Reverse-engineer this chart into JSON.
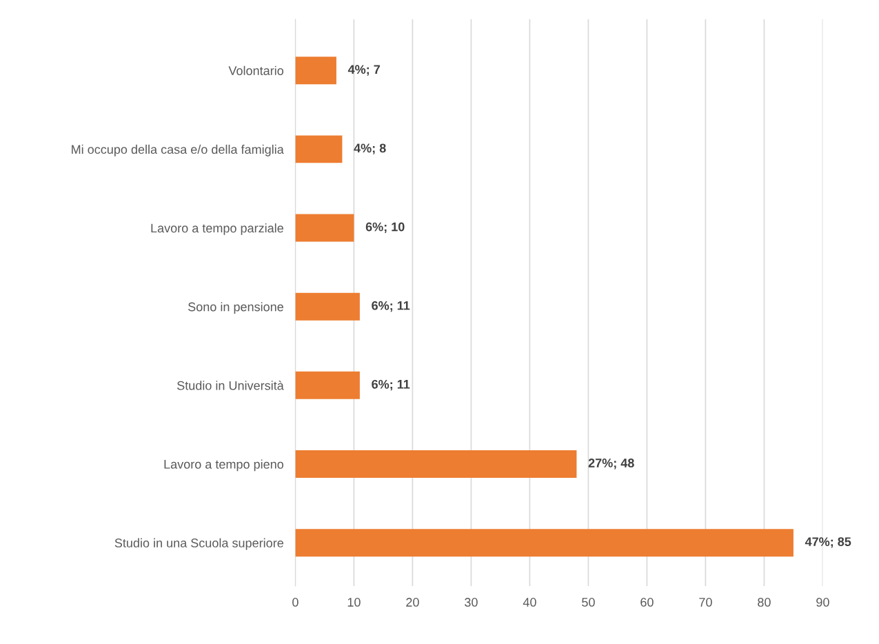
{
  "chart_data": {
    "type": "bar",
    "orientation": "horizontal",
    "categories": [
      "Volontario",
      "Mi occupo della casa e/o della famiglia",
      "Lavoro a tempo parziale",
      "Sono in pensione",
      "Studio in Università",
      "Lavoro a tempo pieno",
      "Studio in una Scuola superiore"
    ],
    "values": [
      7,
      8,
      10,
      11,
      11,
      48,
      85
    ],
    "value_labels": [
      "4%; 7",
      "4%; 8",
      "6%; 10",
      "6%; 11",
      "6%; 11",
      "27%; 48",
      "47%; 85"
    ],
    "color": "#ed7d31",
    "xlim": [
      0,
      90
    ],
    "xticks": [
      0,
      10,
      20,
      30,
      40,
      50,
      60,
      70,
      80,
      90
    ],
    "grid": "x",
    "legend": false
  }
}
